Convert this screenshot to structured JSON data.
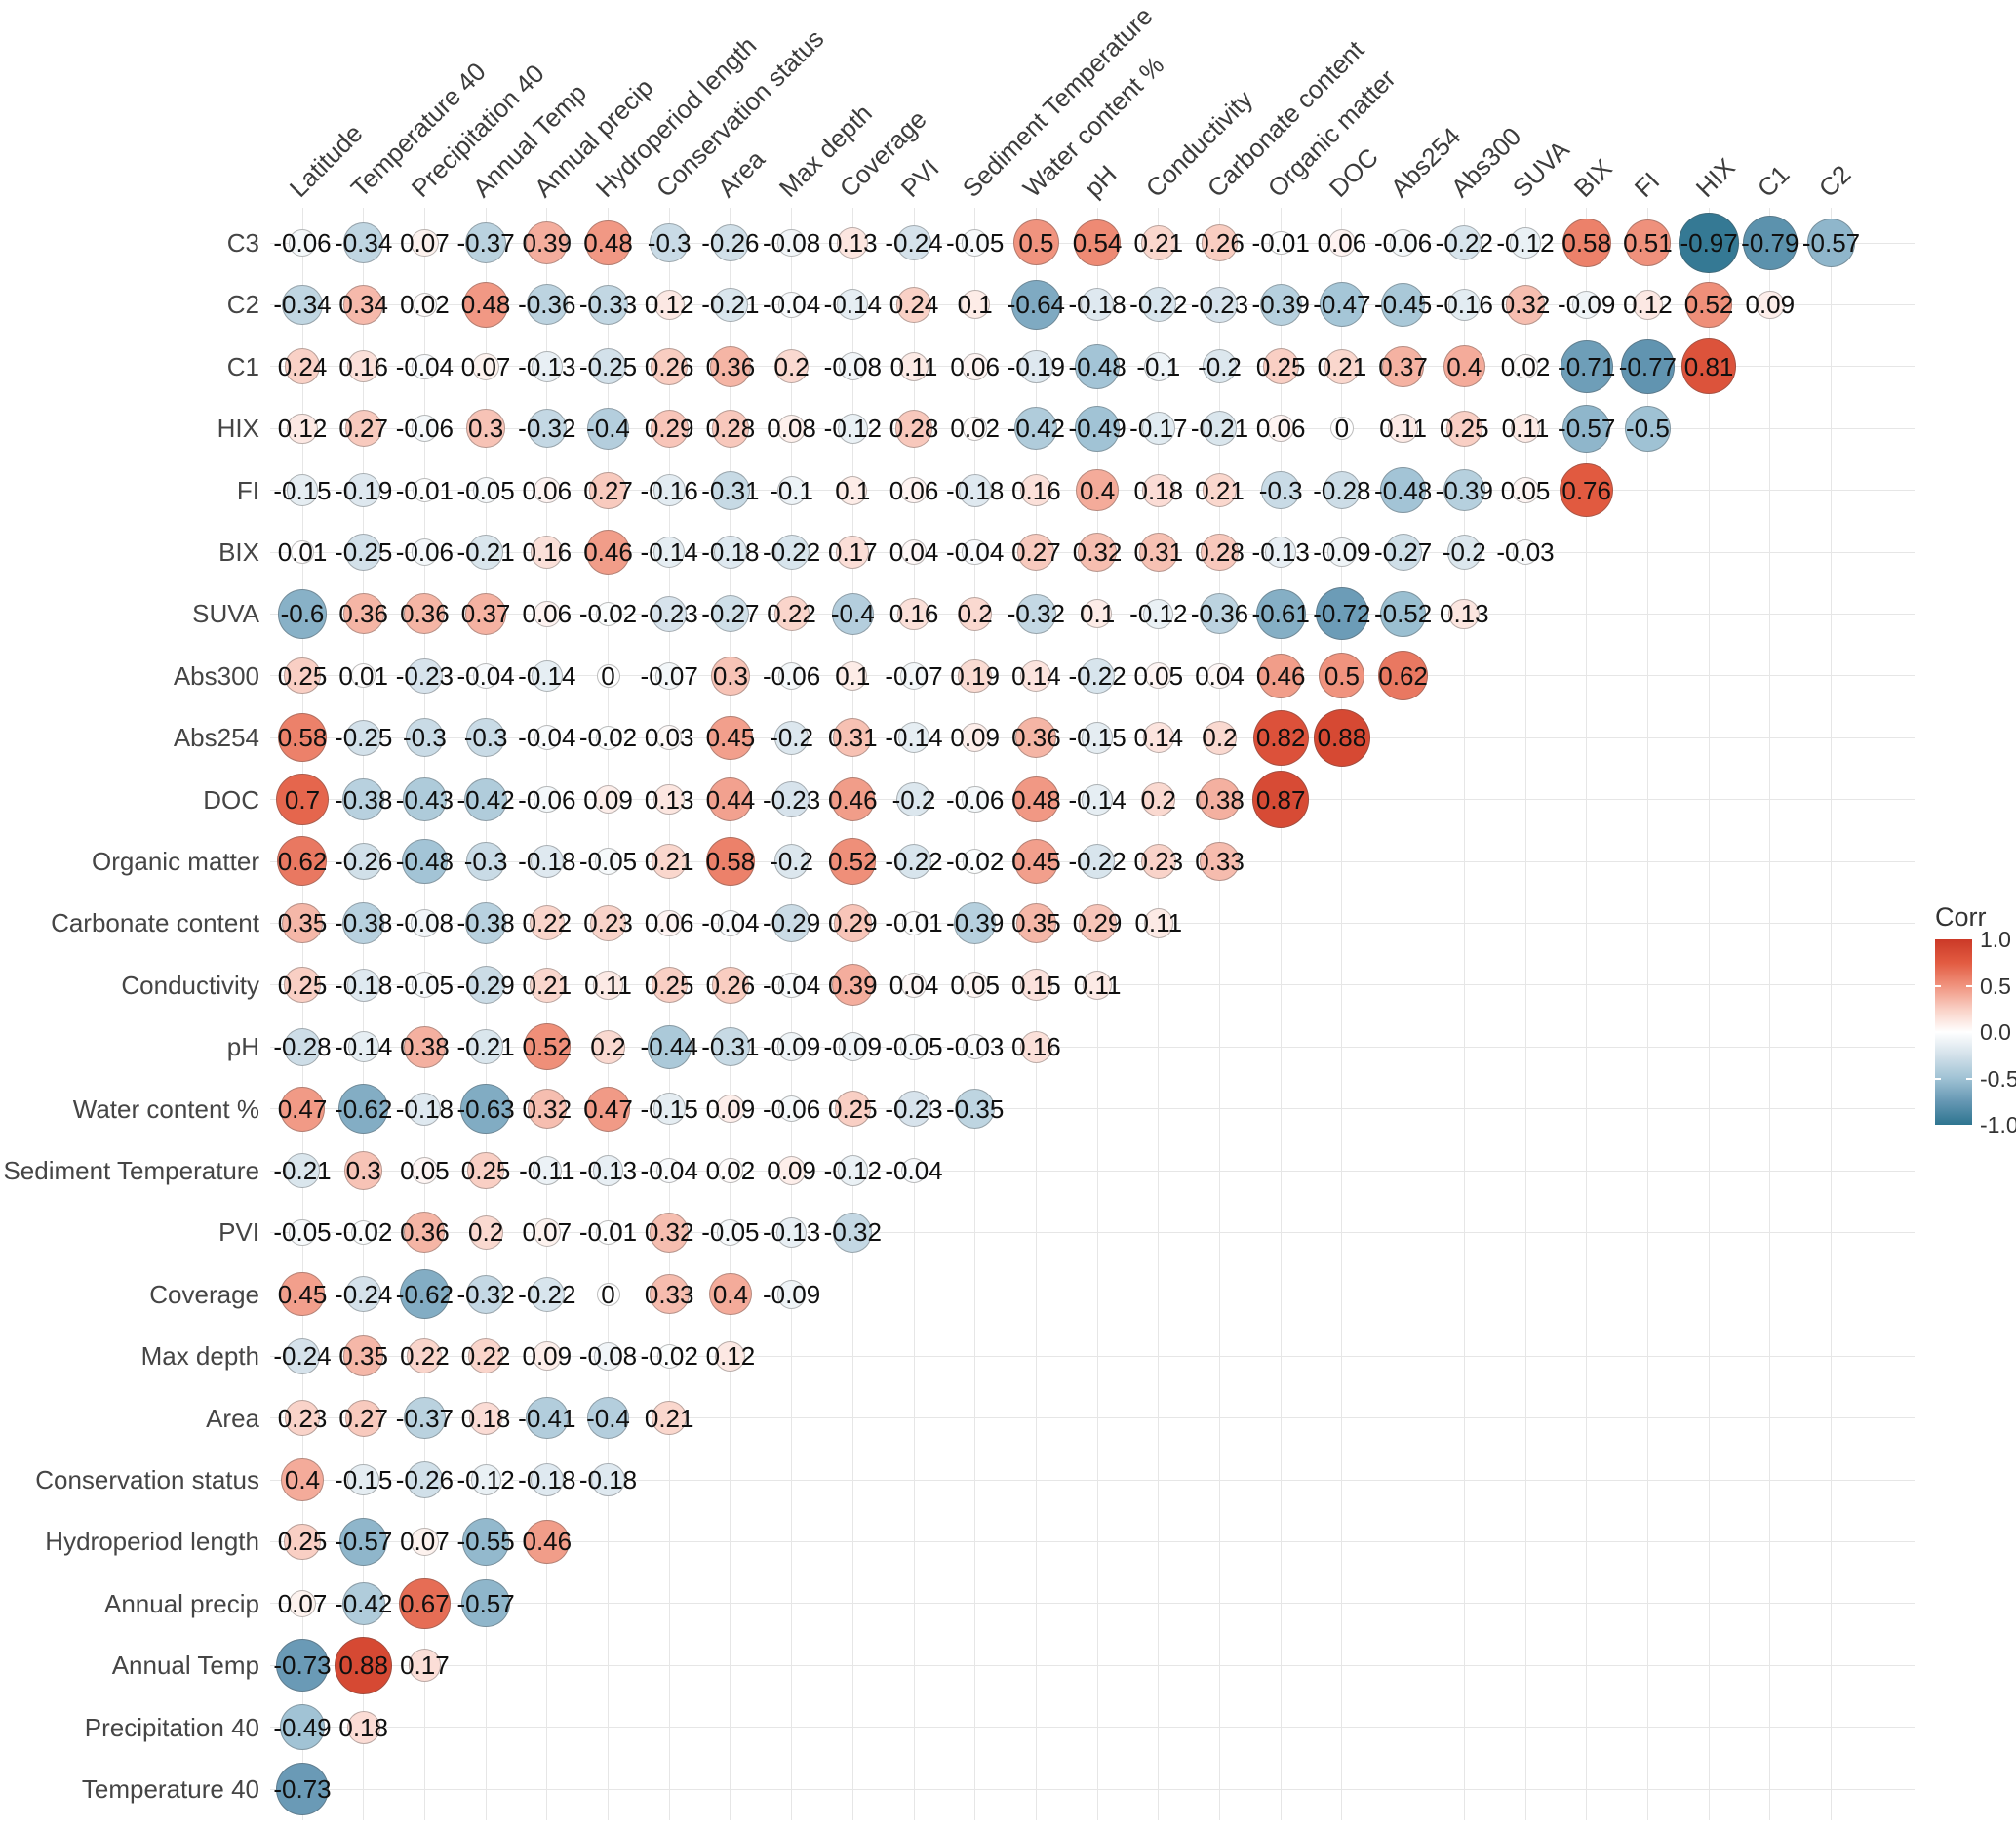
{
  "chart_data": {
    "type": "heatmap",
    "subtype": "correlogram-circles",
    "title": "",
    "grid": true,
    "columns": [
      "Latitude",
      "Temperature 40",
      "Precipitation 40",
      "Annual Temp",
      "Annual precip",
      "Hydroperiod length",
      "Conservation status",
      "Area",
      "Max depth",
      "Coverage",
      "PVI",
      "Sediment Temperature",
      "Water content %",
      "pH",
      "Conductivity",
      "Carbonate content",
      "Organic matter",
      "DOC",
      "Abs254",
      "Abs300",
      "SUVA",
      "BIX",
      "FI",
      "HIX",
      "C1",
      "C2"
    ],
    "rows": [
      {
        "label": "C3",
        "values": [
          -0.06,
          -0.34,
          0.07,
          -0.37,
          0.39,
          0.48,
          -0.3,
          -0.26,
          -0.08,
          0.13,
          -0.24,
          -0.05,
          0.5,
          0.54,
          0.21,
          0.26,
          -0.01,
          0.06,
          -0.06,
          -0.22,
          -0.12,
          0.58,
          0.51,
          -0.97,
          -0.79,
          -0.57
        ]
      },
      {
        "label": "C2",
        "values": [
          -0.34,
          0.34,
          0.02,
          0.48,
          -0.36,
          -0.33,
          0.12,
          -0.21,
          -0.04,
          -0.14,
          0.24,
          0.1,
          -0.64,
          -0.18,
          -0.22,
          -0.23,
          -0.39,
          -0.47,
          -0.45,
          -0.16,
          0.32,
          -0.09,
          0.12,
          0.52,
          0.09
        ]
      },
      {
        "label": "C1",
        "values": [
          0.24,
          0.16,
          -0.04,
          0.07,
          -0.13,
          -0.25,
          0.26,
          0.36,
          0.2,
          -0.08,
          0.11,
          0.06,
          -0.19,
          -0.48,
          -0.1,
          -0.2,
          0.25,
          0.21,
          0.37,
          0.4,
          0.02,
          -0.71,
          -0.77,
          0.81
        ]
      },
      {
        "label": "HIX",
        "values": [
          0.12,
          0.27,
          -0.06,
          0.3,
          -0.32,
          -0.4,
          0.29,
          0.28,
          0.08,
          -0.12,
          0.28,
          0.02,
          -0.42,
          -0.49,
          -0.17,
          -0.21,
          0.06,
          0,
          0.11,
          0.25,
          0.11,
          -0.57,
          -0.5
        ]
      },
      {
        "label": "FI",
        "values": [
          -0.15,
          -0.19,
          -0.01,
          -0.05,
          0.06,
          0.27,
          -0.16,
          -0.31,
          -0.1,
          0.1,
          0.06,
          -0.18,
          0.16,
          0.4,
          0.18,
          0.21,
          -0.3,
          -0.28,
          -0.48,
          -0.39,
          0.05,
          0.76
        ]
      },
      {
        "label": "BIX",
        "values": [
          0.01,
          -0.25,
          -0.06,
          -0.21,
          0.16,
          0.46,
          -0.14,
          -0.18,
          -0.22,
          0.17,
          0.04,
          -0.04,
          0.27,
          0.32,
          0.31,
          0.28,
          -0.13,
          -0.09,
          -0.27,
          -0.2,
          -0.03
        ]
      },
      {
        "label": "SUVA",
        "values": [
          -0.6,
          0.36,
          0.36,
          0.37,
          0.06,
          -0.02,
          -0.23,
          -0.27,
          0.22,
          -0.4,
          0.16,
          0.2,
          -0.32,
          0.1,
          -0.12,
          -0.36,
          -0.61,
          -0.72,
          -0.52,
          0.13
        ]
      },
      {
        "label": "Abs300",
        "values": [
          0.25,
          0.01,
          -0.23,
          -0.04,
          -0.14,
          0,
          -0.07,
          0.3,
          -0.06,
          0.1,
          -0.07,
          0.19,
          0.14,
          -0.22,
          0.05,
          0.04,
          0.46,
          0.5,
          0.62
        ]
      },
      {
        "label": "Abs254",
        "values": [
          0.58,
          -0.25,
          -0.3,
          -0.3,
          -0.04,
          -0.02,
          0.03,
          0.45,
          -0.2,
          0.31,
          -0.14,
          0.09,
          0.36,
          -0.15,
          0.14,
          0.2,
          0.82,
          0.88
        ]
      },
      {
        "label": "DOC",
        "values": [
          0.7,
          -0.38,
          -0.43,
          -0.42,
          -0.06,
          0.09,
          0.13,
          0.44,
          -0.23,
          0.46,
          -0.2,
          -0.06,
          0.48,
          -0.14,
          0.2,
          0.38,
          0.87
        ]
      },
      {
        "label": "Organic matter",
        "values": [
          0.62,
          -0.26,
          -0.48,
          -0.3,
          -0.18,
          -0.05,
          0.21,
          0.58,
          -0.2,
          0.52,
          -0.22,
          -0.02,
          0.45,
          -0.22,
          0.23,
          0.33
        ]
      },
      {
        "label": "Carbonate content",
        "values": [
          0.35,
          -0.38,
          -0.08,
          -0.38,
          0.22,
          0.23,
          0.06,
          -0.04,
          -0.29,
          0.29,
          -0.01,
          -0.39,
          0.35,
          0.29,
          0.11
        ]
      },
      {
        "label": "Conductivity",
        "values": [
          0.25,
          -0.18,
          -0.05,
          -0.29,
          0.21,
          0.11,
          0.25,
          0.26,
          -0.04,
          0.39,
          0.04,
          0.05,
          0.15,
          0.11
        ]
      },
      {
        "label": "pH",
        "values": [
          -0.28,
          -0.14,
          0.38,
          -0.21,
          0.52,
          0.2,
          -0.44,
          -0.31,
          -0.09,
          -0.09,
          -0.05,
          -0.03,
          0.16
        ]
      },
      {
        "label": "Water content %",
        "values": [
          0.47,
          -0.62,
          -0.18,
          -0.63,
          0.32,
          0.47,
          -0.15,
          0.09,
          -0.06,
          0.25,
          -0.23,
          -0.35
        ]
      },
      {
        "label": "Sediment Temperature",
        "values": [
          -0.21,
          0.3,
          0.05,
          0.25,
          -0.11,
          -0.13,
          -0.04,
          0.02,
          0.09,
          -0.12,
          -0.04
        ]
      },
      {
        "label": "PVI",
        "values": [
          -0.05,
          -0.02,
          0.36,
          0.2,
          0.07,
          -0.01,
          0.32,
          -0.05,
          -0.13,
          -0.32
        ]
      },
      {
        "label": "Coverage",
        "values": [
          0.45,
          -0.24,
          -0.62,
          -0.32,
          -0.22,
          0,
          0.33,
          0.4,
          -0.09
        ]
      },
      {
        "label": "Max depth",
        "values": [
          -0.24,
          0.35,
          0.22,
          0.22,
          0.09,
          -0.08,
          -0.02,
          0.12
        ]
      },
      {
        "label": "Area",
        "values": [
          0.23,
          0.27,
          -0.37,
          0.18,
          -0.41,
          -0.4,
          0.21
        ]
      },
      {
        "label": "Conservation status",
        "values": [
          0.4,
          -0.15,
          -0.26,
          -0.12,
          -0.18,
          -0.18
        ]
      },
      {
        "label": "Hydroperiod length",
        "values": [
          0.25,
          -0.57,
          0.07,
          -0.55,
          0.46
        ]
      },
      {
        "label": "Annual precip",
        "values": [
          0.07,
          -0.42,
          0.67,
          -0.57
        ]
      },
      {
        "label": "Annual Temp",
        "values": [
          -0.73,
          0.88,
          0.17
        ]
      },
      {
        "label": "Precipitation 40",
        "values": [
          -0.49,
          0.18
        ]
      },
      {
        "label": "Temperature 40",
        "values": [
          -0.73
        ]
      }
    ],
    "legend": {
      "title": "Corr",
      "ticks": [
        "1.0",
        "0.5",
        "0.0",
        "-0.5",
        "-1.0"
      ],
      "min": -1,
      "max": 1,
      "position": "right"
    },
    "colors": {
      "positive_anchors": [
        "#ffffff",
        "#f9cfc4",
        "#f0937e",
        "#e25b41",
        "#cb3927"
      ],
      "negative_anchors": [
        "#ffffff",
        "#d3e1ea",
        "#9fc2d4",
        "#6597b3",
        "#2e7590"
      ],
      "zero": "#ffffff"
    }
  }
}
